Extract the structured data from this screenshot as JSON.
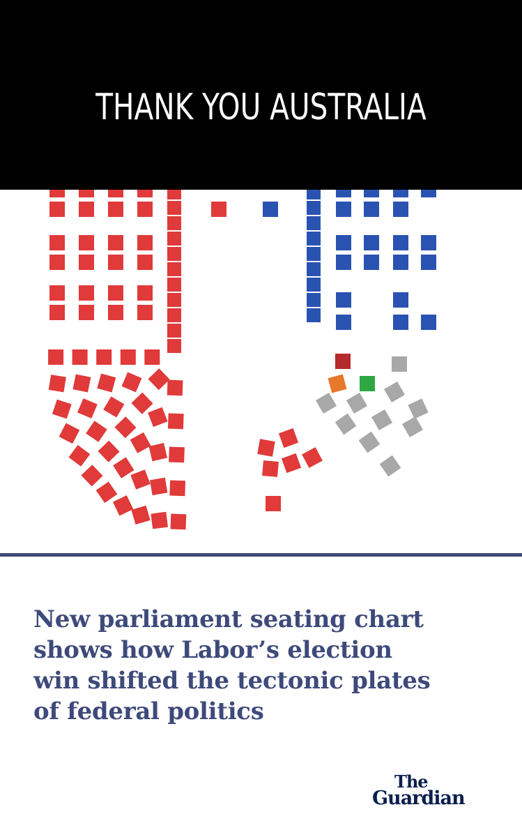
{
  "banner": {
    "title": "THANK YOU AUSTRALIA"
  },
  "chart_data": {
    "type": "seating",
    "colors": {
      "labor": "#e03a3a",
      "coalition": "#2a52b0",
      "greens": "#2ea843",
      "other_red": "#b52a2a",
      "orange": "#e8782a",
      "crossbench": "#a8a8a8"
    }
  },
  "headline": {
    "lines": [
      "New parliament seating chart",
      "shows how Labor’s election",
      "win shifted the tectonic plates",
      "of federal politics"
    ]
  },
  "logo": {
    "the": "The",
    "name": "Guardian"
  }
}
